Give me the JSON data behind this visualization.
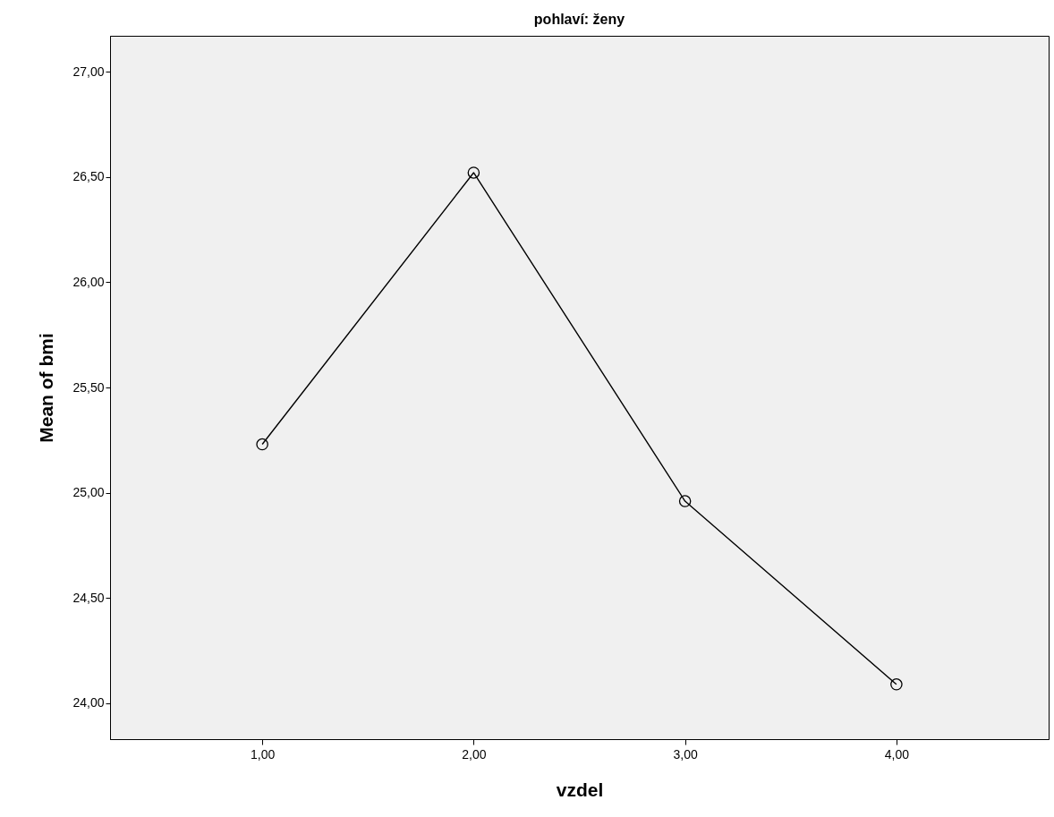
{
  "chart_data": {
    "type": "line",
    "title": "pohlaví: ženy",
    "xlabel": "vzdel",
    "ylabel": "Mean of bmi",
    "x": [
      1,
      2,
      3,
      4
    ],
    "series": [
      {
        "color": "#000000",
        "values": [
          25.23,
          26.52,
          24.96,
          24.09
        ]
      }
    ],
    "xlim": [
      0.28,
      4.72
    ],
    "ylim": [
      23.83,
      27.17
    ],
    "xticks": [
      {
        "value": 1,
        "label": "1,00"
      },
      {
        "value": 2,
        "label": "2,00"
      },
      {
        "value": 3,
        "label": "3,00"
      },
      {
        "value": 4,
        "label": "4,00"
      }
    ],
    "yticks": [
      {
        "value": 24,
        "label": "24,00"
      },
      {
        "value": 24.5,
        "label": "24,50"
      },
      {
        "value": 25,
        "label": "25,00"
      },
      {
        "value": 25.5,
        "label": "25,50"
      },
      {
        "value": 26,
        "label": "26,00"
      },
      {
        "value": 26.5,
        "label": "26,50"
      },
      {
        "value": 27,
        "label": "27,00"
      }
    ],
    "grid": false,
    "marker": "circle",
    "line_style": "solid"
  }
}
